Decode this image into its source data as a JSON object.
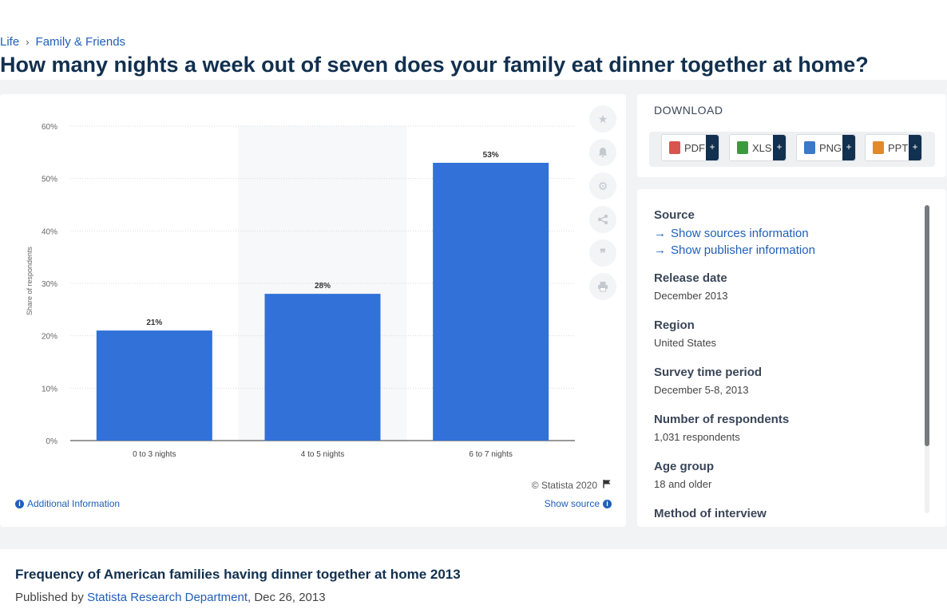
{
  "breadcrumb": {
    "item1": "Life",
    "item2": "Family & Friends",
    "separator": "›"
  },
  "page_title": "How many nights a week out of seven does your family eat dinner together at home?",
  "chart_tools": [
    "star-icon",
    "bell-icon",
    "gear-icon",
    "share-icon",
    "quote-icon",
    "print-icon"
  ],
  "chart_footer": {
    "copyright": "© Statista 2020",
    "additional_info": "Additional Information",
    "show_source": "Show source"
  },
  "download": {
    "title": "DOWNLOAD",
    "buttons": [
      {
        "label": "PDF",
        "icon": "pdf-icon",
        "color": "#d9534f"
      },
      {
        "label": "XLS",
        "icon": "xls-icon",
        "color": "#3c9a3c"
      },
      {
        "label": "PNG",
        "icon": "png-icon",
        "color": "#3a78c8"
      },
      {
        "label": "PPT",
        "icon": "ppt-icon",
        "color": "#e08a2c"
      }
    ],
    "plus": "+"
  },
  "source_panel": {
    "source_label": "Source",
    "show_sources": "Show sources information",
    "show_publisher": "Show publisher information",
    "release_label": "Release date",
    "release_value": "December 2013",
    "region_label": "Region",
    "region_value": "United States",
    "survey_label": "Survey time period",
    "survey_value": "December 5-8, 2013",
    "respondents_label": "Number of respondents",
    "respondents_value": "1,031 respondents",
    "age_label": "Age group",
    "age_value": "18 and older",
    "method_label": "Method of interview"
  },
  "bottom": {
    "title": "Frequency of American families having dinner together at home 2013",
    "published_prefix": "Published by",
    "publisher": "Statista Research Department",
    "date": ", Dec 26, 2013"
  },
  "colors": {
    "bar": "#3171d8",
    "brand_dark": "#12304f",
    "link": "#1f5fb8"
  },
  "chart_data": {
    "type": "bar",
    "categories": [
      "0 to 3 nights",
      "4 to 5 nights",
      "6 to 7 nights"
    ],
    "values": [
      21,
      28,
      53
    ],
    "value_labels": [
      "21%",
      "28%",
      "53%"
    ],
    "ylabel": "Share of respondents",
    "ylim": [
      0,
      60
    ],
    "yticks": [
      0,
      10,
      20,
      30,
      40,
      50,
      60
    ],
    "ytick_labels": [
      "0%",
      "10%",
      "20%",
      "30%",
      "40%",
      "50%",
      "60%"
    ],
    "grid": true
  }
}
